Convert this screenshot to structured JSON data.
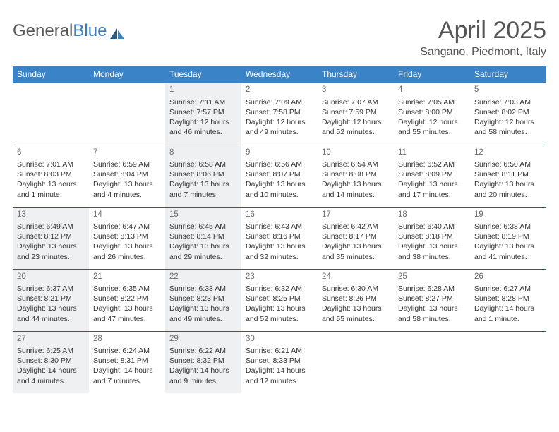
{
  "logo": {
    "text1": "General",
    "text2": "Blue"
  },
  "header": {
    "title": "April 2025",
    "location": "Sangano, Piedmont, Italy"
  },
  "colors": {
    "header_bg": "#3b83c7",
    "header_text": "#ffffff",
    "row_border": "#2d5b86",
    "shaded_bg": "#eef0f2",
    "title_color": "#555555",
    "logo_blue": "#3b7ec4"
  },
  "weekdays": [
    "Sunday",
    "Monday",
    "Tuesday",
    "Wednesday",
    "Thursday",
    "Friday",
    "Saturday"
  ],
  "weeks": [
    [
      {
        "day": "",
        "lines": []
      },
      {
        "day": "",
        "lines": []
      },
      {
        "day": "1",
        "shaded": true,
        "lines": [
          "Sunrise: 7:11 AM",
          "Sunset: 7:57 PM",
          "Daylight: 12 hours and 46 minutes."
        ]
      },
      {
        "day": "2",
        "lines": [
          "Sunrise: 7:09 AM",
          "Sunset: 7:58 PM",
          "Daylight: 12 hours and 49 minutes."
        ]
      },
      {
        "day": "3",
        "lines": [
          "Sunrise: 7:07 AM",
          "Sunset: 7:59 PM",
          "Daylight: 12 hours and 52 minutes."
        ]
      },
      {
        "day": "4",
        "lines": [
          "Sunrise: 7:05 AM",
          "Sunset: 8:00 PM",
          "Daylight: 12 hours and 55 minutes."
        ]
      },
      {
        "day": "5",
        "lines": [
          "Sunrise: 7:03 AM",
          "Sunset: 8:02 PM",
          "Daylight: 12 hours and 58 minutes."
        ]
      }
    ],
    [
      {
        "day": "6",
        "lines": [
          "Sunrise: 7:01 AM",
          "Sunset: 8:03 PM",
          "Daylight: 13 hours and 1 minute."
        ]
      },
      {
        "day": "7",
        "lines": [
          "Sunrise: 6:59 AM",
          "Sunset: 8:04 PM",
          "Daylight: 13 hours and 4 minutes."
        ]
      },
      {
        "day": "8",
        "shaded": true,
        "lines": [
          "Sunrise: 6:58 AM",
          "Sunset: 8:06 PM",
          "Daylight: 13 hours and 7 minutes."
        ]
      },
      {
        "day": "9",
        "lines": [
          "Sunrise: 6:56 AM",
          "Sunset: 8:07 PM",
          "Daylight: 13 hours and 10 minutes."
        ]
      },
      {
        "day": "10",
        "lines": [
          "Sunrise: 6:54 AM",
          "Sunset: 8:08 PM",
          "Daylight: 13 hours and 14 minutes."
        ]
      },
      {
        "day": "11",
        "lines": [
          "Sunrise: 6:52 AM",
          "Sunset: 8:09 PM",
          "Daylight: 13 hours and 17 minutes."
        ]
      },
      {
        "day": "12",
        "lines": [
          "Sunrise: 6:50 AM",
          "Sunset: 8:11 PM",
          "Daylight: 13 hours and 20 minutes."
        ]
      }
    ],
    [
      {
        "day": "13",
        "shaded": true,
        "lines": [
          "Sunrise: 6:49 AM",
          "Sunset: 8:12 PM",
          "Daylight: 13 hours and 23 minutes."
        ]
      },
      {
        "day": "14",
        "lines": [
          "Sunrise: 6:47 AM",
          "Sunset: 8:13 PM",
          "Daylight: 13 hours and 26 minutes."
        ]
      },
      {
        "day": "15",
        "shaded": true,
        "lines": [
          "Sunrise: 6:45 AM",
          "Sunset: 8:14 PM",
          "Daylight: 13 hours and 29 minutes."
        ]
      },
      {
        "day": "16",
        "lines": [
          "Sunrise: 6:43 AM",
          "Sunset: 8:16 PM",
          "Daylight: 13 hours and 32 minutes."
        ]
      },
      {
        "day": "17",
        "lines": [
          "Sunrise: 6:42 AM",
          "Sunset: 8:17 PM",
          "Daylight: 13 hours and 35 minutes."
        ]
      },
      {
        "day": "18",
        "lines": [
          "Sunrise: 6:40 AM",
          "Sunset: 8:18 PM",
          "Daylight: 13 hours and 38 minutes."
        ]
      },
      {
        "day": "19",
        "lines": [
          "Sunrise: 6:38 AM",
          "Sunset: 8:19 PM",
          "Daylight: 13 hours and 41 minutes."
        ]
      }
    ],
    [
      {
        "day": "20",
        "shaded": true,
        "lines": [
          "Sunrise: 6:37 AM",
          "Sunset: 8:21 PM",
          "Daylight: 13 hours and 44 minutes."
        ]
      },
      {
        "day": "21",
        "lines": [
          "Sunrise: 6:35 AM",
          "Sunset: 8:22 PM",
          "Daylight: 13 hours and 47 minutes."
        ]
      },
      {
        "day": "22",
        "shaded": true,
        "lines": [
          "Sunrise: 6:33 AM",
          "Sunset: 8:23 PM",
          "Daylight: 13 hours and 49 minutes."
        ]
      },
      {
        "day": "23",
        "lines": [
          "Sunrise: 6:32 AM",
          "Sunset: 8:25 PM",
          "Daylight: 13 hours and 52 minutes."
        ]
      },
      {
        "day": "24",
        "lines": [
          "Sunrise: 6:30 AM",
          "Sunset: 8:26 PM",
          "Daylight: 13 hours and 55 minutes."
        ]
      },
      {
        "day": "25",
        "lines": [
          "Sunrise: 6:28 AM",
          "Sunset: 8:27 PM",
          "Daylight: 13 hours and 58 minutes."
        ]
      },
      {
        "day": "26",
        "lines": [
          "Sunrise: 6:27 AM",
          "Sunset: 8:28 PM",
          "Daylight: 14 hours and 1 minute."
        ]
      }
    ],
    [
      {
        "day": "27",
        "shaded": true,
        "lines": [
          "Sunrise: 6:25 AM",
          "Sunset: 8:30 PM",
          "Daylight: 14 hours and 4 minutes."
        ]
      },
      {
        "day": "28",
        "lines": [
          "Sunrise: 6:24 AM",
          "Sunset: 8:31 PM",
          "Daylight: 14 hours and 7 minutes."
        ]
      },
      {
        "day": "29",
        "shaded": true,
        "lines": [
          "Sunrise: 6:22 AM",
          "Sunset: 8:32 PM",
          "Daylight: 14 hours and 9 minutes."
        ]
      },
      {
        "day": "30",
        "lines": [
          "Sunrise: 6:21 AM",
          "Sunset: 8:33 PM",
          "Daylight: 14 hours and 12 minutes."
        ]
      },
      {
        "day": "",
        "lines": []
      },
      {
        "day": "",
        "lines": []
      },
      {
        "day": "",
        "lines": []
      }
    ]
  ]
}
